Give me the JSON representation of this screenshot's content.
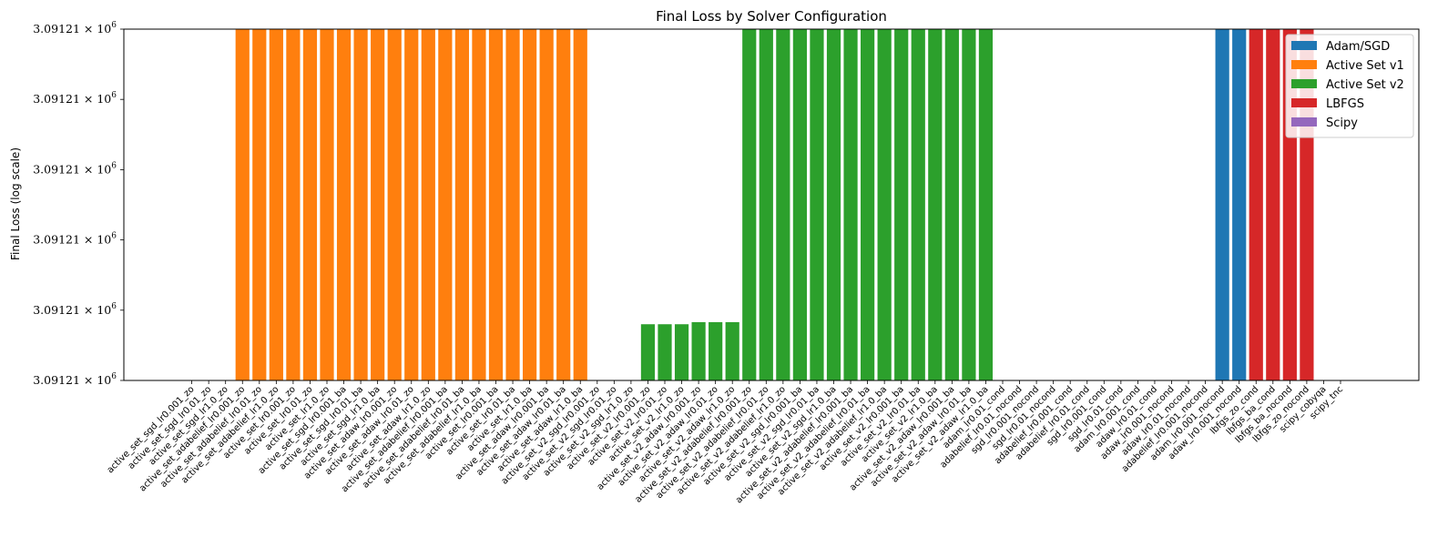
{
  "chart_data": {
    "type": "bar",
    "title": "Final Loss by Solver Configuration",
    "xlabel": "",
    "ylabel": "Final Loss (log scale)",
    "yscale": "log",
    "ytick_labels": [
      {
        "base": "3.09121",
        "exp": "6"
      },
      {
        "base": "3.09121",
        "exp": "6"
      },
      {
        "base": "3.09121",
        "exp": "6"
      },
      {
        "base": "3.09121",
        "exp": "6"
      },
      {
        "base": "3.09121",
        "exp": "6"
      },
      {
        "base": "3.09121",
        "exp": "6"
      }
    ],
    "ylim": [
      0,
      5
    ],
    "grid": false,
    "legend": {
      "placement": "top-right",
      "entries": [
        {
          "name": "Adam/SGD",
          "color": "#1f77b4"
        },
        {
          "name": "Active Set v1",
          "color": "#ff7f0e"
        },
        {
          "name": "Active Set v2",
          "color": "#2ca02c"
        },
        {
          "name": "LBFGS",
          "color": "#d62728"
        },
        {
          "name": "Scipy",
          "color": "#9467bd"
        }
      ]
    },
    "categories": [
      "active_set_sgd_lr0.001_zo",
      "active_set_sgd_lr0.01_zo",
      "active_set_sgd_lr1.0_zo",
      "active_set_adabelief_lr0.001_zo",
      "active_set_adabelief_lr0.01_zo",
      "active_set_adabelief_lr1.0_zo",
      "active_set_lr0.001_zo",
      "active_set_lr0.01_zo",
      "active_set_lr1.0_zo",
      "active_set_sgd_lr0.001_ba",
      "active_set_sgd_lr0.01_ba",
      "active_set_sgd_lr1.0_ba",
      "active_set_adaw_lr0.001_zo",
      "active_set_adaw_lr0.01_zo",
      "active_set_adaw_lr1.0_zo",
      "active_set_adabelief_lr0.001_ba",
      "active_set_adabelief_lr0.01_ba",
      "active_set_adabelief_lr1.0_ba",
      "active_set_lr0.001_ba",
      "active_set_lr0.01_ba",
      "active_set_lr1.0_ba",
      "active_set_adaw_lr0.001_ba",
      "active_set_adaw_lr0.01_ba",
      "active_set_adaw_lr1.0_ba",
      "active_set_v2_sgd_lr0.001_zo",
      "active_set_v2_sgd_lr0.01_zo",
      "active_set_v2_sgd_lr1.0_zo",
      "active_set_v2_lr0.001_zo",
      "active_set_v2_lr0.01_zo",
      "active_set_v2_lr1.0_zo",
      "active_set_v2_adaw_lr0.001_zo",
      "active_set_v2_adaw_lr0.01_zo",
      "active_set_v2_adaw_lr1.0_zo",
      "active_set_v2_adabelief_lr0.001_zo",
      "active_set_v2_adabelief_lr0.01_zo",
      "active_set_v2_adabelief_lr1.0_zo",
      "active_set_v2_sgd_lr0.001_ba",
      "active_set_v2_sgd_lr0.01_ba",
      "active_set_v2_sgd_lr1.0_ba",
      "active_set_v2_adabelief_lr0.001_ba",
      "active_set_v2_adabelief_lr0.01_ba",
      "active_set_v2_adabelief_lr1.0_ba",
      "active_set_v2_lr0.001_ba",
      "active_set_v2_lr0.01_ba",
      "active_set_v2_lr1.0_ba",
      "active_set_v2_adaw_lr0.001_ba",
      "active_set_v2_adaw_lr0.01_ba",
      "active_set_v2_adaw_lr1.0_ba",
      "adam_lr0.01_cond",
      "adabelief_lr0.01_nocond",
      "sgd_lr0.001_nocond",
      "sgd_lr0.01_nocond",
      "adabelief_lr0.001_cond",
      "adabelief_lr0.01_cond",
      "sgd_lr0.001_cond",
      "sgd_lr0.01_cond",
      "adam_lr0.001_cond",
      "adaw_lr0.01_cond",
      "adaw_lr0.001_nocond",
      "adaw_lr0.01_nocond",
      "adabelief_lr0.001_nocond",
      "adam_lr0.001_nocond",
      "adaw_lr0.001_nocond",
      "lbfgs_zo_cond",
      "lbfgs_ba_cond",
      "lbfgs_ba_nocond",
      "lbfgs_zo_nocond",
      "scipy_cobyqa",
      "scipy_tnc"
    ],
    "groups": [
      "v1",
      "v1",
      "v1",
      "v1",
      "v1",
      "v1",
      "v1",
      "v1",
      "v1",
      "v1",
      "v1",
      "v1",
      "v1",
      "v1",
      "v1",
      "v1",
      "v1",
      "v1",
      "v1",
      "v1",
      "v1",
      "v1",
      "v1",
      "v1",
      "v2",
      "v2",
      "v2",
      "v2",
      "v2",
      "v2",
      "v2",
      "v2",
      "v2",
      "v2",
      "v2",
      "v2",
      "v2",
      "v2",
      "v2",
      "v2",
      "v2",
      "v2",
      "v2",
      "v2",
      "v2",
      "v2",
      "v2",
      "v2",
      "adam",
      "adam",
      "adam",
      "adam",
      "adam",
      "adam",
      "adam",
      "adam",
      "adam",
      "adam",
      "adam",
      "adam",
      "adam",
      "adam",
      "adam",
      "lbfgs",
      "lbfgs",
      "lbfgs",
      "lbfgs",
      "scipy",
      "scipy"
    ],
    "values": [
      null,
      null,
      null,
      5,
      5,
      5,
      5,
      5,
      5,
      5,
      5,
      5,
      5,
      5,
      5,
      5,
      5,
      5,
      5,
      5,
      5,
      5,
      5,
      5,
      null,
      null,
      null,
      0.8,
      0.8,
      0.8,
      0.83,
      0.83,
      0.83,
      5,
      5,
      5,
      5,
      5,
      5,
      5,
      5,
      5,
      5,
      5,
      5,
      5,
      5,
      5,
      null,
      null,
      null,
      null,
      null,
      null,
      null,
      null,
      null,
      null,
      null,
      null,
      null,
      5,
      5,
      5,
      5,
      5,
      5,
      null,
      null
    ]
  }
}
